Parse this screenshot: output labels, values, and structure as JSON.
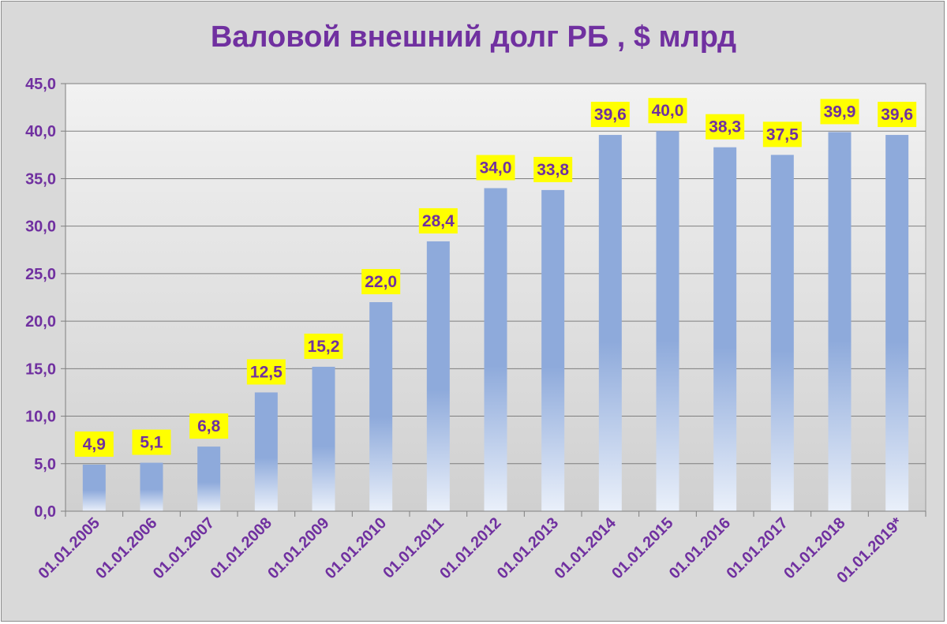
{
  "chart_data": {
    "type": "bar",
    "title": "Валовой внешний долг РБ , $ млрд",
    "xlabel": "",
    "ylabel": "",
    "categories": [
      "01.01.2005",
      "01.01.2006",
      "01.01.2007",
      "01.01.2008",
      "01.01.2009",
      "01.01.2010",
      "01.01.2011",
      "01.01.2012",
      "01.01.2013",
      "01.01.2014",
      "01.01.2015",
      "01.01.2016",
      "01.01.2017",
      "01.01.2018",
      "01.01.2019*"
    ],
    "values": [
      4.9,
      5.1,
      6.8,
      12.5,
      15.2,
      22.0,
      28.4,
      34.0,
      33.8,
      39.6,
      40.0,
      38.3,
      37.5,
      39.9,
      39.6
    ],
    "data_labels": [
      "4,9",
      "5,1",
      "6,8",
      "12,5",
      "15,2",
      "22,0",
      "28,4",
      "34,0",
      "33,8",
      "39,6",
      "40,0",
      "38,3",
      "37,5",
      "39,9",
      "39,6"
    ],
    "ylim": [
      0,
      45
    ],
    "yticks": [
      0,
      5,
      10,
      15,
      20,
      25,
      30,
      35,
      40,
      45
    ],
    "ytick_labels": [
      "0,0",
      "5,0",
      "10,0",
      "15,0",
      "20,0",
      "25,0",
      "30,0",
      "35,0",
      "40,0",
      "45,0"
    ],
    "grid": true,
    "legend": "none",
    "colors": {
      "bar_top": "#8eaadb",
      "bar_bottom": "#eaf0fa",
      "label_bg": "#ffff00",
      "text": "#7030a0",
      "plot_bg_top": "#f2f2f2",
      "plot_bg_bottom": "#d0d0d0",
      "chart_bg": "#d9d9d9"
    }
  }
}
